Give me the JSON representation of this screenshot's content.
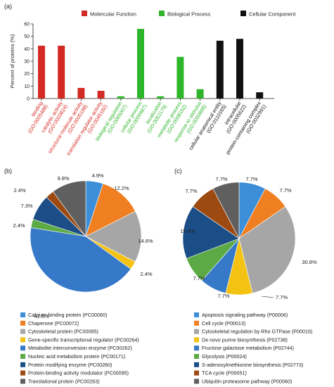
{
  "panels": {
    "a": "(a)",
    "b": "(b)",
    "c": "(c)"
  },
  "bar_legend": [
    {
      "label": "Molercular Function",
      "color": "#d42a24"
    },
    {
      "label": "Biological Process",
      "color": "#2fb52b"
    },
    {
      "label": "Cellular Component",
      "color": "#111111"
    }
  ],
  "chart_data": [
    {
      "type": "bar",
      "ylabel": "Percent of proteins (%)",
      "ylim": [
        0,
        60
      ],
      "yticks": [
        0,
        10,
        20,
        30,
        40,
        50,
        60
      ],
      "legend_position": "top",
      "categories": [
        {
          "name": "binding",
          "go": "(GO:0005488)",
          "group": "Molercular Function",
          "value": 42.5
        },
        {
          "name": "catalytic activity",
          "go": "(GO:0003824)",
          "group": "Molercular Function",
          "value": 42.5
        },
        {
          "name": "structural molecule activity",
          "go": "(GO:0005198)",
          "group": "Molercular Function",
          "value": 8.5
        },
        {
          "name": "translation regulator activity",
          "go": "(GO:0045182)",
          "group": "Molercular Function",
          "value": 6.2
        },
        {
          "name": "biological regulation",
          "go": "(GO:0065007)",
          "group": "Biological Process",
          "value": 1.8
        },
        {
          "name": "cellular process",
          "go": "(GO:0009987)",
          "group": "Biological Process",
          "value": 56
        },
        {
          "name": "localization",
          "go": "(GO:0051179)",
          "group": "Biological Process",
          "value": 1.8
        },
        {
          "name": "metabolic process",
          "go": "(GO:0008152)",
          "group": "Biological Process",
          "value": 33.5
        },
        {
          "name": "response to stimulus",
          "go": "(GO:0050896)",
          "group": "Biological Process",
          "value": 7.5
        },
        {
          "name": "cellular anatomical entity",
          "go": "(GO:0110165)",
          "group": "Cellular Component",
          "value": 46.5
        },
        {
          "name": "intracellular",
          "go": "(GO:0005622)",
          "group": "Cellular Component",
          "value": 48
        },
        {
          "name": "protein-containing complex",
          "go": "(GO:0032991)",
          "group": "Cellular Component",
          "value": 5
        }
      ]
    },
    {
      "type": "pie",
      "start_angle_deg": 0,
      "slices": [
        {
          "label": "Calcium-binding protein (PC00060)",
          "value": 4.9,
          "percent": "4.9%",
          "color": "#3c8ed8"
        },
        {
          "label": "Chaperone (PC00072)",
          "value": 12.2,
          "percent": "12.2%",
          "color": "#f07f21"
        },
        {
          "label": "Cytoskeletal protein (PC00085)",
          "value": 14.6,
          "percent": "14.6%",
          "color": "#a6a6a6"
        },
        {
          "label": "Gene-specific transcriptional regulator (PC00264)",
          "value": 2.4,
          "percent": "2.4%",
          "color": "#f3c213"
        },
        {
          "label": "Metabolite interconversion enzyme (PC00262)",
          "value": 41.5,
          "percent": "41.5%",
          "color": "#3679c8"
        },
        {
          "label": "Nucleic acid metabolism protein (PC00171)",
          "value": 2.4,
          "percent": "2.4%",
          "color": "#5caa45"
        },
        {
          "label": "Protein modifying enzyme (PC00260)",
          "value": 7.3,
          "percent": "7.3%",
          "color": "#1b4d86"
        },
        {
          "label": "Protein-binding activity modulator (PC00095)",
          "value": 2.4,
          "percent": "2.4%",
          "color": "#9c4a12"
        },
        {
          "label": "Translational protein (PC00263)",
          "value": 9.8,
          "percent": "9.8%",
          "color": "#5f5f5f"
        }
      ]
    },
    {
      "type": "pie",
      "start_angle_deg": 0,
      "slices": [
        {
          "label": "Apoptosis signaling pathway (P00006)",
          "value": 7.7,
          "percent": "7.7%",
          "color": "#3c8ed8"
        },
        {
          "label": "Cell cycle (P00013)",
          "value": 7.7,
          "percent": "7.7%",
          "color": "#f07f21"
        },
        {
          "label": "Cytoskeletal regulation by Rho GTPase (P00016)",
          "value": 30.8,
          "percent": "30.8%",
          "color": "#a6a6a6"
        },
        {
          "label": "De novo purine biosynthesis (P02738)",
          "value": 7.7,
          "percent": "7.7%",
          "color": "#f3c213"
        },
        {
          "label": "Fructose galactose metabolism (P02744)",
          "value": 7.7,
          "percent": "7.7%",
          "color": "#3679c8"
        },
        {
          "label": "Glycolysis (P00024)",
          "value": 7.7,
          "percent": "7.7%",
          "color": "#5caa45"
        },
        {
          "label": "S-adenosylmethionine biosynthesis (P02773)",
          "value": 15.4,
          "percent": "15.4%",
          "color": "#1b4d86"
        },
        {
          "label": "TCA cycle (P00051)",
          "value": 7.7,
          "percent": "7.7%",
          "color": "#9c4a12"
        },
        {
          "label": "Ubiquitin proteasome pathway (P00060)",
          "value": 7.7,
          "percent": "7.7%",
          "color": "#5f5f5f"
        }
      ]
    }
  ]
}
